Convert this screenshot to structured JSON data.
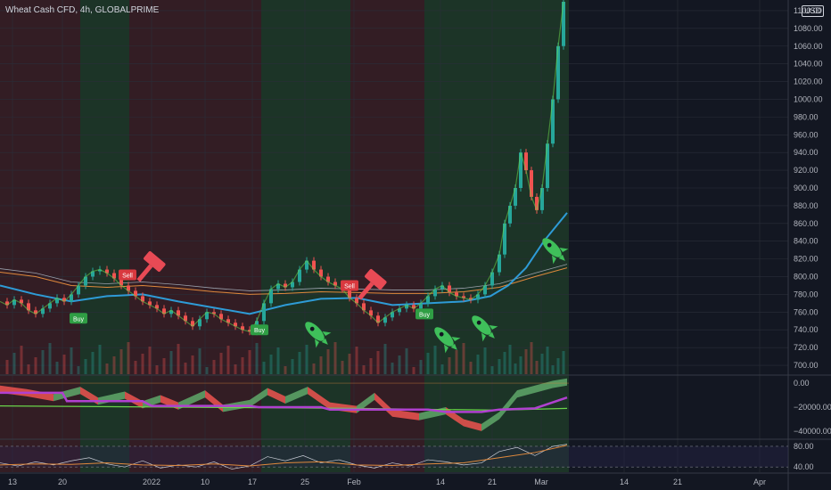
{
  "header": {
    "title": "Wheat Cash CFD, 4h, GLOBALPRIME"
  },
  "currency": "USD",
  "colors": {
    "bg": "#131722",
    "bull_zone": "#1e3a28",
    "bear_zone": "#3a1f24",
    "candle_up": "#26a69a",
    "candle_down": "#ef5350",
    "ma_blue": "#2e9bd6",
    "ma_orange": "#e0893c",
    "ma_grey": "#9aa0ab",
    "purple": "#b040d0",
    "green_line": "#6ad44a",
    "rocket": "#3fbf5a",
    "hammer": "#e84a55",
    "buy_badge": "#2f9e44",
    "sell_badge": "#d9393f"
  },
  "chart_data": [
    {
      "type": "line",
      "panel": "price",
      "y_axis": {
        "ticks": [
          700,
          720,
          740,
          760,
          780,
          800,
          820,
          840,
          860,
          880,
          900,
          920,
          940,
          960,
          980,
          1000,
          1020,
          1040,
          1060,
          1080,
          1100
        ],
        "labels": [
          "700.00",
          "720.00",
          "740.00",
          "760.00",
          "780.00",
          "800.00",
          "820.00",
          "840.00",
          "860.00",
          "880.00",
          "900.00",
          "920.00",
          "940.00",
          "960.00",
          "980.00",
          "1000.00",
          "1020.00",
          "1040.00",
          "1060.00",
          "1080.00",
          "1100.00"
        ],
        "ylim": [
          690,
          1112
        ]
      },
      "x_axis": {
        "labels": [
          "13",
          "20",
          "2022",
          "10",
          "17",
          "25",
          "Feb",
          "14",
          "21",
          "Mar",
          "14",
          "21",
          "Apr"
        ],
        "positions": [
          14,
          70,
          170,
          230,
          283,
          342,
          397,
          494,
          552,
          607,
          700,
          760,
          852
        ]
      },
      "close_path": [
        [
          0,
          772
        ],
        [
          8,
          768
        ],
        [
          16,
          774
        ],
        [
          24,
          770
        ],
        [
          32,
          762
        ],
        [
          40,
          758
        ],
        [
          48,
          764
        ],
        [
          56,
          770
        ],
        [
          64,
          776
        ],
        [
          72,
          772
        ],
        [
          80,
          780
        ],
        [
          88,
          790
        ],
        [
          96,
          800
        ],
        [
          104,
          806
        ],
        [
          112,
          808
        ],
        [
          120,
          804
        ],
        [
          128,
          798
        ],
        [
          136,
          790
        ],
        [
          144,
          784
        ],
        [
          152,
          778
        ],
        [
          160,
          772
        ],
        [
          168,
          768
        ],
        [
          176,
          764
        ],
        [
          184,
          758
        ],
        [
          192,
          762
        ],
        [
          200,
          756
        ],
        [
          208,
          750
        ],
        [
          216,
          744
        ],
        [
          224,
          752
        ],
        [
          232,
          760
        ],
        [
          240,
          758
        ],
        [
          248,
          752
        ],
        [
          256,
          748
        ],
        [
          264,
          744
        ],
        [
          272,
          740
        ],
        [
          280,
          738
        ],
        [
          288,
          750
        ],
        [
          296,
          770
        ],
        [
          304,
          786
        ],
        [
          312,
          792
        ],
        [
          320,
          788
        ],
        [
          328,
          794
        ],
        [
          336,
          808
        ],
        [
          344,
          818
        ],
        [
          352,
          808
        ],
        [
          360,
          800
        ],
        [
          368,
          794
        ],
        [
          376,
          790
        ],
        [
          384,
          786
        ],
        [
          392,
          776
        ],
        [
          400,
          770
        ],
        [
          408,
          762
        ],
        [
          416,
          756
        ],
        [
          424,
          748
        ],
        [
          432,
          754
        ],
        [
          440,
          760
        ],
        [
          448,
          764
        ],
        [
          456,
          768
        ],
        [
          464,
          764
        ],
        [
          472,
          770
        ],
        [
          480,
          778
        ],
        [
          488,
          786
        ],
        [
          496,
          790
        ],
        [
          504,
          782
        ],
        [
          512,
          778
        ],
        [
          520,
          776
        ],
        [
          528,
          774
        ],
        [
          536,
          780
        ],
        [
          544,
          790
        ],
        [
          552,
          805
        ],
        [
          560,
          825
        ],
        [
          566,
          860
        ],
        [
          572,
          880
        ],
        [
          578,
          900
        ],
        [
          584,
          940
        ],
        [
          590,
          920
        ],
        [
          596,
          890
        ],
        [
          602,
          875
        ],
        [
          608,
          900
        ],
        [
          614,
          950
        ],
        [
          620,
          1000
        ],
        [
          626,
          1060
        ],
        [
          632,
          1110
        ]
      ],
      "series": [
        {
          "values_path": [
            [
              0,
              805
            ],
            [
              40,
              800
            ],
            [
              80,
              790
            ],
            [
              120,
              788
            ],
            [
              160,
              790
            ],
            [
              200,
              787
            ],
            [
              240,
              783
            ],
            [
              280,
              780
            ],
            [
              320,
              781
            ],
            [
              360,
              783
            ],
            [
              400,
              782
            ],
            [
              440,
              781
            ],
            [
              480,
              781
            ],
            [
              520,
              783
            ],
            [
              560,
              788
            ],
            [
              600,
              800
            ],
            [
              636,
              810
            ]
          ]
        },
        {
          "values_path": [
            [
              0,
              790
            ],
            [
              40,
              780
            ],
            [
              80,
              772
            ],
            [
              120,
              778
            ],
            [
              160,
              780
            ],
            [
              200,
              772
            ],
            [
              240,
              765
            ],
            [
              280,
              758
            ],
            [
              320,
              768
            ],
            [
              360,
              775
            ],
            [
              400,
              776
            ],
            [
              440,
              768
            ],
            [
              480,
              770
            ],
            [
              520,
              772
            ],
            [
              550,
              778
            ],
            [
              570,
              790
            ],
            [
              590,
              810
            ],
            [
              610,
              840
            ],
            [
              636,
              872
            ]
          ]
        }
      ]
    },
    {
      "type": "area",
      "panel": "oscillator",
      "y_axis": {
        "ticks": [
          0,
          -20000,
          -40000
        ],
        "labels": [
          "0.00",
          "−20000.00",
          "−40000.00"
        ],
        "ylim": [
          -46000,
          6000
        ]
      },
      "waves": [
        [
          0,
          -2000
        ],
        [
          30,
          -5000
        ],
        [
          60,
          -9000
        ],
        [
          90,
          -3000
        ],
        [
          110,
          -12000
        ],
        [
          140,
          -7000
        ],
        [
          160,
          -15000
        ],
        [
          180,
          -10000
        ],
        [
          200,
          -16000
        ],
        [
          230,
          -6000
        ],
        [
          250,
          -18000
        ],
        [
          280,
          -14000
        ],
        [
          300,
          -4000
        ],
        [
          320,
          -11000
        ],
        [
          345,
          -3000
        ],
        [
          370,
          -16000
        ],
        [
          400,
          -19000
        ],
        [
          420,
          -8000
        ],
        [
          440,
          -22000
        ],
        [
          470,
          -25000
        ],
        [
          500,
          -20000
        ],
        [
          520,
          -30000
        ],
        [
          540,
          -34000
        ],
        [
          560,
          -24000
        ],
        [
          580,
          -6000
        ],
        [
          600,
          -2000
        ],
        [
          620,
          2000
        ],
        [
          636,
          4000
        ]
      ],
      "purple_path": [
        [
          0,
          -8000
        ],
        [
          70,
          -8000
        ],
        [
          75,
          -15000
        ],
        [
          160,
          -15000
        ],
        [
          170,
          -19000
        ],
        [
          280,
          -19000
        ],
        [
          290,
          -20000
        ],
        [
          360,
          -20000
        ],
        [
          370,
          -22000
        ],
        [
          480,
          -22000
        ],
        [
          500,
          -24000
        ],
        [
          540,
          -24000
        ],
        [
          560,
          -22000
        ],
        [
          600,
          -21000
        ],
        [
          636,
          -12000
        ]
      ],
      "green_path": [
        [
          0,
          -19000
        ],
        [
          200,
          -20000
        ],
        [
          400,
          -21000
        ],
        [
          500,
          -22000
        ],
        [
          560,
          -22500
        ],
        [
          636,
          -21000
        ]
      ]
    },
    {
      "type": "line",
      "panel": "rsi",
      "y_axis": {
        "ticks": [
          80,
          40
        ],
        "labels": [
          "80.00",
          "40.00"
        ],
        "ylim": [
          30,
          92
        ]
      },
      "orange_path": [
        [
          0,
          44
        ],
        [
          40,
          46
        ],
        [
          80,
          45
        ],
        [
          120,
          48
        ],
        [
          160,
          44
        ],
        [
          200,
          43
        ],
        [
          240,
          46
        ],
        [
          280,
          42
        ],
        [
          320,
          48
        ],
        [
          360,
          50
        ],
        [
          400,
          44
        ],
        [
          440,
          43
        ],
        [
          480,
          46
        ],
        [
          520,
          48
        ],
        [
          560,
          58
        ],
        [
          600,
          68
        ],
        [
          636,
          82
        ]
      ],
      "white_path": [
        [
          0,
          48
        ],
        [
          20,
          42
        ],
        [
          40,
          50
        ],
        [
          60,
          44
        ],
        [
          80,
          52
        ],
        [
          100,
          58
        ],
        [
          120,
          46
        ],
        [
          140,
          40
        ],
        [
          160,
          52
        ],
        [
          180,
          38
        ],
        [
          200,
          44
        ],
        [
          220,
          40
        ],
        [
          240,
          50
        ],
        [
          260,
          36
        ],
        [
          280,
          42
        ],
        [
          300,
          60
        ],
        [
          320,
          52
        ],
        [
          340,
          62
        ],
        [
          360,
          48
        ],
        [
          380,
          54
        ],
        [
          400,
          44
        ],
        [
          420,
          38
        ],
        [
          440,
          48
        ],
        [
          460,
          42
        ],
        [
          480,
          54
        ],
        [
          500,
          50
        ],
        [
          520,
          44
        ],
        [
          540,
          48
        ],
        [
          560,
          70
        ],
        [
          580,
          78
        ],
        [
          600,
          62
        ],
        [
          620,
          80
        ],
        [
          636,
          84
        ]
      ]
    }
  ],
  "signals": {
    "buy_label": "Buy",
    "sell_label": "Sell",
    "buys": [
      [
        88,
        753
      ],
      [
        291,
        740
      ],
      [
        476,
        758
      ]
    ],
    "sells": [
      [
        143,
        802
      ],
      [
        392,
        790
      ]
    ],
    "rockets": [
      [
        353,
        372
      ],
      [
        498,
        378
      ],
      [
        540,
        365
      ],
      [
        619,
        278
      ]
    ],
    "hammers": [
      [
        172,
        295
      ],
      [
        420,
        315
      ]
    ]
  },
  "zones": [
    {
      "x0": 0,
      "x1": 90,
      "kind": "bear"
    },
    {
      "x0": 90,
      "x1": 145,
      "kind": "bull"
    },
    {
      "x0": 145,
      "x1": 293,
      "kind": "bear"
    },
    {
      "x0": 293,
      "x1": 393,
      "kind": "bull"
    },
    {
      "x0": 393,
      "x1": 476,
      "kind": "bear"
    },
    {
      "x0": 476,
      "x1": 638,
      "kind": "bull"
    }
  ]
}
